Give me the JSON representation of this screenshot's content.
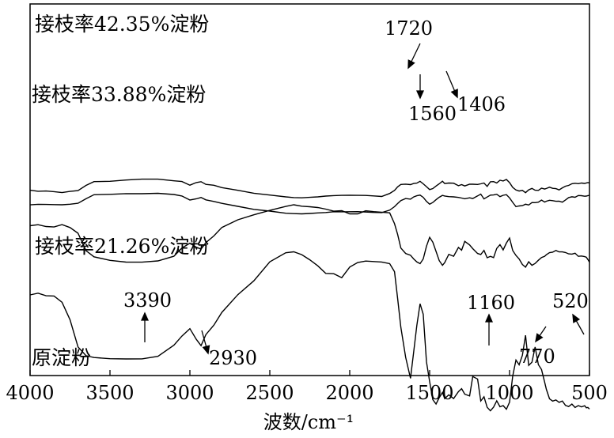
{
  "chart_data": {
    "type": "line",
    "xlabel": "波数/cm⁻¹",
    "ylabel": "",
    "xlim": [
      4000,
      500
    ],
    "x_ticks": [
      "4000",
      "3500",
      "3000",
      "2500",
      "2000",
      "1500",
      "1000",
      "500"
    ],
    "grid": false,
    "series": [
      {
        "name": "接枝率42.35%淀粉",
        "x": [
          4000,
          3950,
          3900,
          3850,
          3800,
          3750,
          3700,
          3650,
          3600,
          3500,
          3400,
          3300,
          3200,
          3100,
          3050,
          3000,
          2960,
          2930,
          2900,
          2850,
          2800,
          2700,
          2600,
          2500,
          2400,
          2350,
          2300,
          2250,
          2200,
          2150,
          2100,
          2050,
          2000,
          1950,
          1900,
          1850,
          1800,
          1750,
          1720,
          1700,
          1680,
          1650,
          1620,
          1600,
          1580,
          1560,
          1540,
          1520,
          1500,
          1480,
          1460,
          1440,
          1420,
          1406,
          1380,
          1350,
          1320,
          1300,
          1280,
          1250,
          1230,
          1200,
          1180,
          1160,
          1140,
          1120,
          1100,
          1080,
          1060,
          1040,
          1020,
          1000,
          980,
          960,
          940,
          920,
          900,
          880,
          860,
          840,
          820,
          800,
          780,
          770,
          750,
          730,
          710,
          690,
          670,
          650,
          630,
          610,
          590,
          570,
          550,
          530,
          520,
          510,
          500
        ],
        "y": [
          -80.6,
          -81.9,
          -81.6,
          -82.4,
          -83.6,
          -82.1,
          -81.1,
          -74.5,
          -69.7,
          -69.3,
          -67.7,
          -66.6,
          -66.6,
          -68.7,
          -69.6,
          -74.2,
          -70.9,
          -69.8,
          -73.2,
          -74.3,
          -77.3,
          -80.7,
          -84.4,
          -86.7,
          -89.0,
          -89.9,
          -90.2,
          -89.6,
          -89.0,
          -88.0,
          -87.4,
          -87.1,
          -86.9,
          -87.1,
          -87.2,
          -87.8,
          -88.5,
          -84.7,
          -80.8,
          -76.3,
          -73.3,
          -72.9,
          -73.5,
          -72.1,
          -71.6,
          -69.3,
          -72.5,
          -76.1,
          -79.8,
          -78.5,
          -75.3,
          -72.5,
          -69.2,
          -72.1,
          -71.5,
          -71.7,
          -74.9,
          -73.5,
          -75.2,
          -73.0,
          -73.0,
          -73.3,
          -72.5,
          -71.5,
          -75.8,
          -69.9,
          -69.7,
          -71.4,
          -68.0,
          -68.9,
          -67.0,
          -71.0,
          -77.0,
          -80.3,
          -81.6,
          -80.8,
          -83.7,
          -80.1,
          -78.3,
          -80.6,
          -80.8,
          -78.0,
          -79.1,
          -78.4,
          -76.8,
          -78.2,
          -78.6,
          -80.2,
          -77.6,
          -75.5,
          -74.5,
          -72.4,
          -71.8,
          -72.3,
          -71.5,
          -72.0,
          -71.4,
          -71.0,
          -71.3
        ]
      },
      {
        "name": "接枝率33.88%淀粉",
        "x": [
          4000,
          3950,
          3900,
          3850,
          3800,
          3750,
          3700,
          3650,
          3600,
          3500,
          3400,
          3300,
          3200,
          3100,
          3050,
          3000,
          2960,
          2930,
          2900,
          2850,
          2800,
          2700,
          2600,
          2500,
          2400,
          2350,
          2300,
          2250,
          2200,
          2150,
          2100,
          2050,
          2000,
          1950,
          1900,
          1850,
          1800,
          1750,
          1720,
          1700,
          1680,
          1650,
          1620,
          1600,
          1580,
          1560,
          1540,
          1520,
          1500,
          1480,
          1460,
          1440,
          1420,
          1406,
          1380,
          1350,
          1320,
          1300,
          1280,
          1250,
          1230,
          1200,
          1180,
          1160,
          1140,
          1120,
          1100,
          1080,
          1060,
          1040,
          1020,
          1000,
          980,
          960,
          940,
          920,
          900,
          880,
          860,
          840,
          820,
          800,
          780,
          770,
          750,
          730,
          710,
          690,
          670,
          650,
          630,
          610,
          590,
          570,
          550,
          530,
          520,
          510,
          500
        ],
        "y": [
          -24.1,
          -23.4,
          -23.6,
          -23.8,
          -24.0,
          -23.3,
          -22.1,
          -16.4,
          -11.3,
          -10.8,
          -9.9,
          -10.0,
          -9.5,
          -11.0,
          -12.9,
          -18.0,
          -16.5,
          -14.8,
          -17.8,
          -19.8,
          -22.2,
          -26.0,
          -29.8,
          -32.0,
          -34.7,
          -35.2,
          -35.5,
          -35.0,
          -34.3,
          -33.8,
          -32.8,
          -32.9,
          -32.8,
          -32.7,
          -33.2,
          -33.7,
          -33.9,
          -30.8,
          -26.4,
          -22.4,
          -18.7,
          -16.1,
          -16.9,
          -14.1,
          -12.6,
          -11.8,
          -14.6,
          -19.7,
          -23.3,
          -21.1,
          -17.6,
          -14.5,
          -12.1,
          -12.9,
          -13.7,
          -14.0,
          -14.7,
          -15.5,
          -16.4,
          -15.2,
          -16.1,
          -12.8,
          -10.5,
          -16.6,
          -14.2,
          -11.8,
          -11.6,
          -10.7,
          -13.7,
          -12.0,
          -11.2,
          -15.3,
          -21.0,
          -26.4,
          -25.5,
          -25.1,
          -23.3,
          -24.3,
          -21.2,
          -21.3,
          -20.7,
          -18.1,
          -20.6,
          -19.5,
          -18.3,
          -18.8,
          -19.6,
          -19.5,
          -20.7,
          -17.9,
          -14.9,
          -13.9,
          -14.5,
          -12.3,
          -12.5,
          -13.2,
          -13.0,
          -12.4,
          -12.1
        ]
      },
      {
        "name": "",
        "x": [
          4000,
          3950,
          3900,
          3850,
          3800,
          3750,
          3700,
          3650,
          3600,
          3500,
          3400,
          3300,
          3200,
          3100,
          3050,
          3000,
          2960,
          2930,
          2900,
          2850,
          2800,
          2700,
          2600,
          2500,
          2400,
          2350,
          2300,
          2250,
          2200,
          2150,
          2100,
          2050,
          2000,
          1950,
          1900,
          1850,
          1800,
          1750,
          1720,
          1700,
          1680,
          1650,
          1620,
          1600,
          1580,
          1560,
          1540,
          1520,
          1500,
          1480,
          1460,
          1440,
          1420,
          1406,
          1380,
          1350,
          1320,
          1300,
          1280,
          1250,
          1230,
          1200,
          1180,
          1160,
          1140,
          1120,
          1100,
          1080,
          1060,
          1040,
          1020,
          1000,
          980,
          960,
          940,
          920,
          900,
          880,
          860,
          840,
          820,
          800,
          780,
          770,
          750,
          730,
          710,
          690,
          670,
          650,
          630,
          610,
          590,
          570,
          550,
          530,
          520,
          510,
          500
        ],
        "y": [
          64.5,
          65.8,
          63.5,
          62.9,
          65.9,
          62.2,
          55.0,
          33.0,
          25.2,
          20.7,
          18.5,
          18.4,
          20.0,
          25.9,
          36.3,
          42.4,
          37.3,
          35.0,
          43.1,
          51.6,
          62.3,
          72.0,
          78.3,
          83.9,
          88.9,
          91.0,
          89.2,
          88.5,
          87.5,
          85.5,
          82.9,
          83.5,
          79.5,
          79.5,
          83.4,
          82.3,
          81.6,
          80.8,
          67.1,
          53.3,
          36.3,
          29.4,
          27.2,
          22.5,
          18.7,
          16.5,
          22.5,
          38.6,
          49.8,
          43.7,
          32.0,
          20.4,
          14.4,
          17.8,
          28.3,
          25.9,
          37.0,
          33.6,
          44.7,
          40.2,
          35.5,
          29.4,
          28.1,
          33.3,
          24.0,
          25.8,
          24.2,
          35.8,
          40.6,
          33.9,
          42.6,
          48.9,
          33.1,
          26.9,
          22.5,
          15.5,
          12.1,
          18.9,
          14.4,
          16.8,
          20.8,
          24.3,
          25.9,
          27.8,
          30.4,
          31.0,
          33.2,
          31.4,
          31.4,
          30.6,
          28.9,
          28.6,
          29.7,
          25.8,
          26.2,
          25.4,
          24.7,
          21.7,
          18.3
        ]
      },
      {
        "name": "原淀粉",
        "x": [
          4000,
          3950,
          3900,
          3850,
          3800,
          3750,
          3700,
          3650,
          3600,
          3500,
          3400,
          3300,
          3200,
          3100,
          3050,
          3000,
          2960,
          2930,
          2900,
          2850,
          2800,
          2700,
          2600,
          2500,
          2400,
          2350,
          2300,
          2250,
          2200,
          2150,
          2100,
          2050,
          2000,
          1950,
          1900,
          1850,
          1800,
          1750,
          1720,
          1700,
          1680,
          1650,
          1620,
          1600,
          1580,
          1560,
          1540,
          1520,
          1500,
          1480,
          1460,
          1440,
          1420,
          1406,
          1380,
          1350,
          1320,
          1300,
          1280,
          1250,
          1230,
          1200,
          1180,
          1160,
          1140,
          1120,
          1100,
          1080,
          1060,
          1040,
          1020,
          1000,
          980,
          960,
          940,
          920,
          900,
          880,
          860,
          840,
          820,
          800,
          780,
          770,
          750,
          730,
          710,
          690,
          670,
          650,
          630,
          610,
          590,
          570,
          550,
          530,
          520,
          510,
          500
        ],
        "y": [
          177.0,
          179.2,
          175.9,
          175.6,
          167.7,
          145.6,
          111.2,
          100.1,
          97.8,
          96.3,
          96.0,
          96.1,
          99.3,
          113.4,
          124.9,
          134.3,
          120.8,
          112.8,
          126.8,
          138.8,
          154.9,
          177.3,
          194.8,
          218.8,
          230.3,
          231.5,
          227.9,
          221.4,
          213.8,
          204.2,
          203.8,
          198.8,
          212.2,
          218.0,
          219.8,
          219.2,
          218.6,
          216.5,
          206.4,
          172.0,
          136.1,
          98.0,
          71.5,
          104.6,
          138.3,
          165.8,
          152.5,
          92.3,
          67.3,
          44.5,
          39.0,
          47.0,
          53.6,
          45.8,
          50.6,
          45.9,
          54.7,
          58.4,
          51.4,
          49.2,
          73.7,
          70.6,
          42.8,
          48.1,
          34.8,
          30.4,
          35.0,
          43.0,
          35.5,
          37.0,
          32.4,
          41.3,
          74.4,
          94.6,
          88.6,
          100.5,
          125.9,
          87.9,
          91.9,
          111.1,
          88.9,
          82.6,
          66.4,
          57.6,
          45.6,
          42.7,
          44.1,
          41.1,
          42.8,
          37.2,
          35.8,
          38.9,
          34.6,
          37.0,
          35.4,
          36.8,
          34.3,
          34.6,
          32.6
        ]
      }
    ],
    "series_label_21": "接枝率21.26%淀粉",
    "annotations": [
      "1720",
      "1560",
      "1406",
      "3390",
      "2930",
      "1160",
      "770",
      "520"
    ]
  },
  "colors": {
    "line": "#000000",
    "frame": "#000000",
    "background": "#ffffff"
  }
}
